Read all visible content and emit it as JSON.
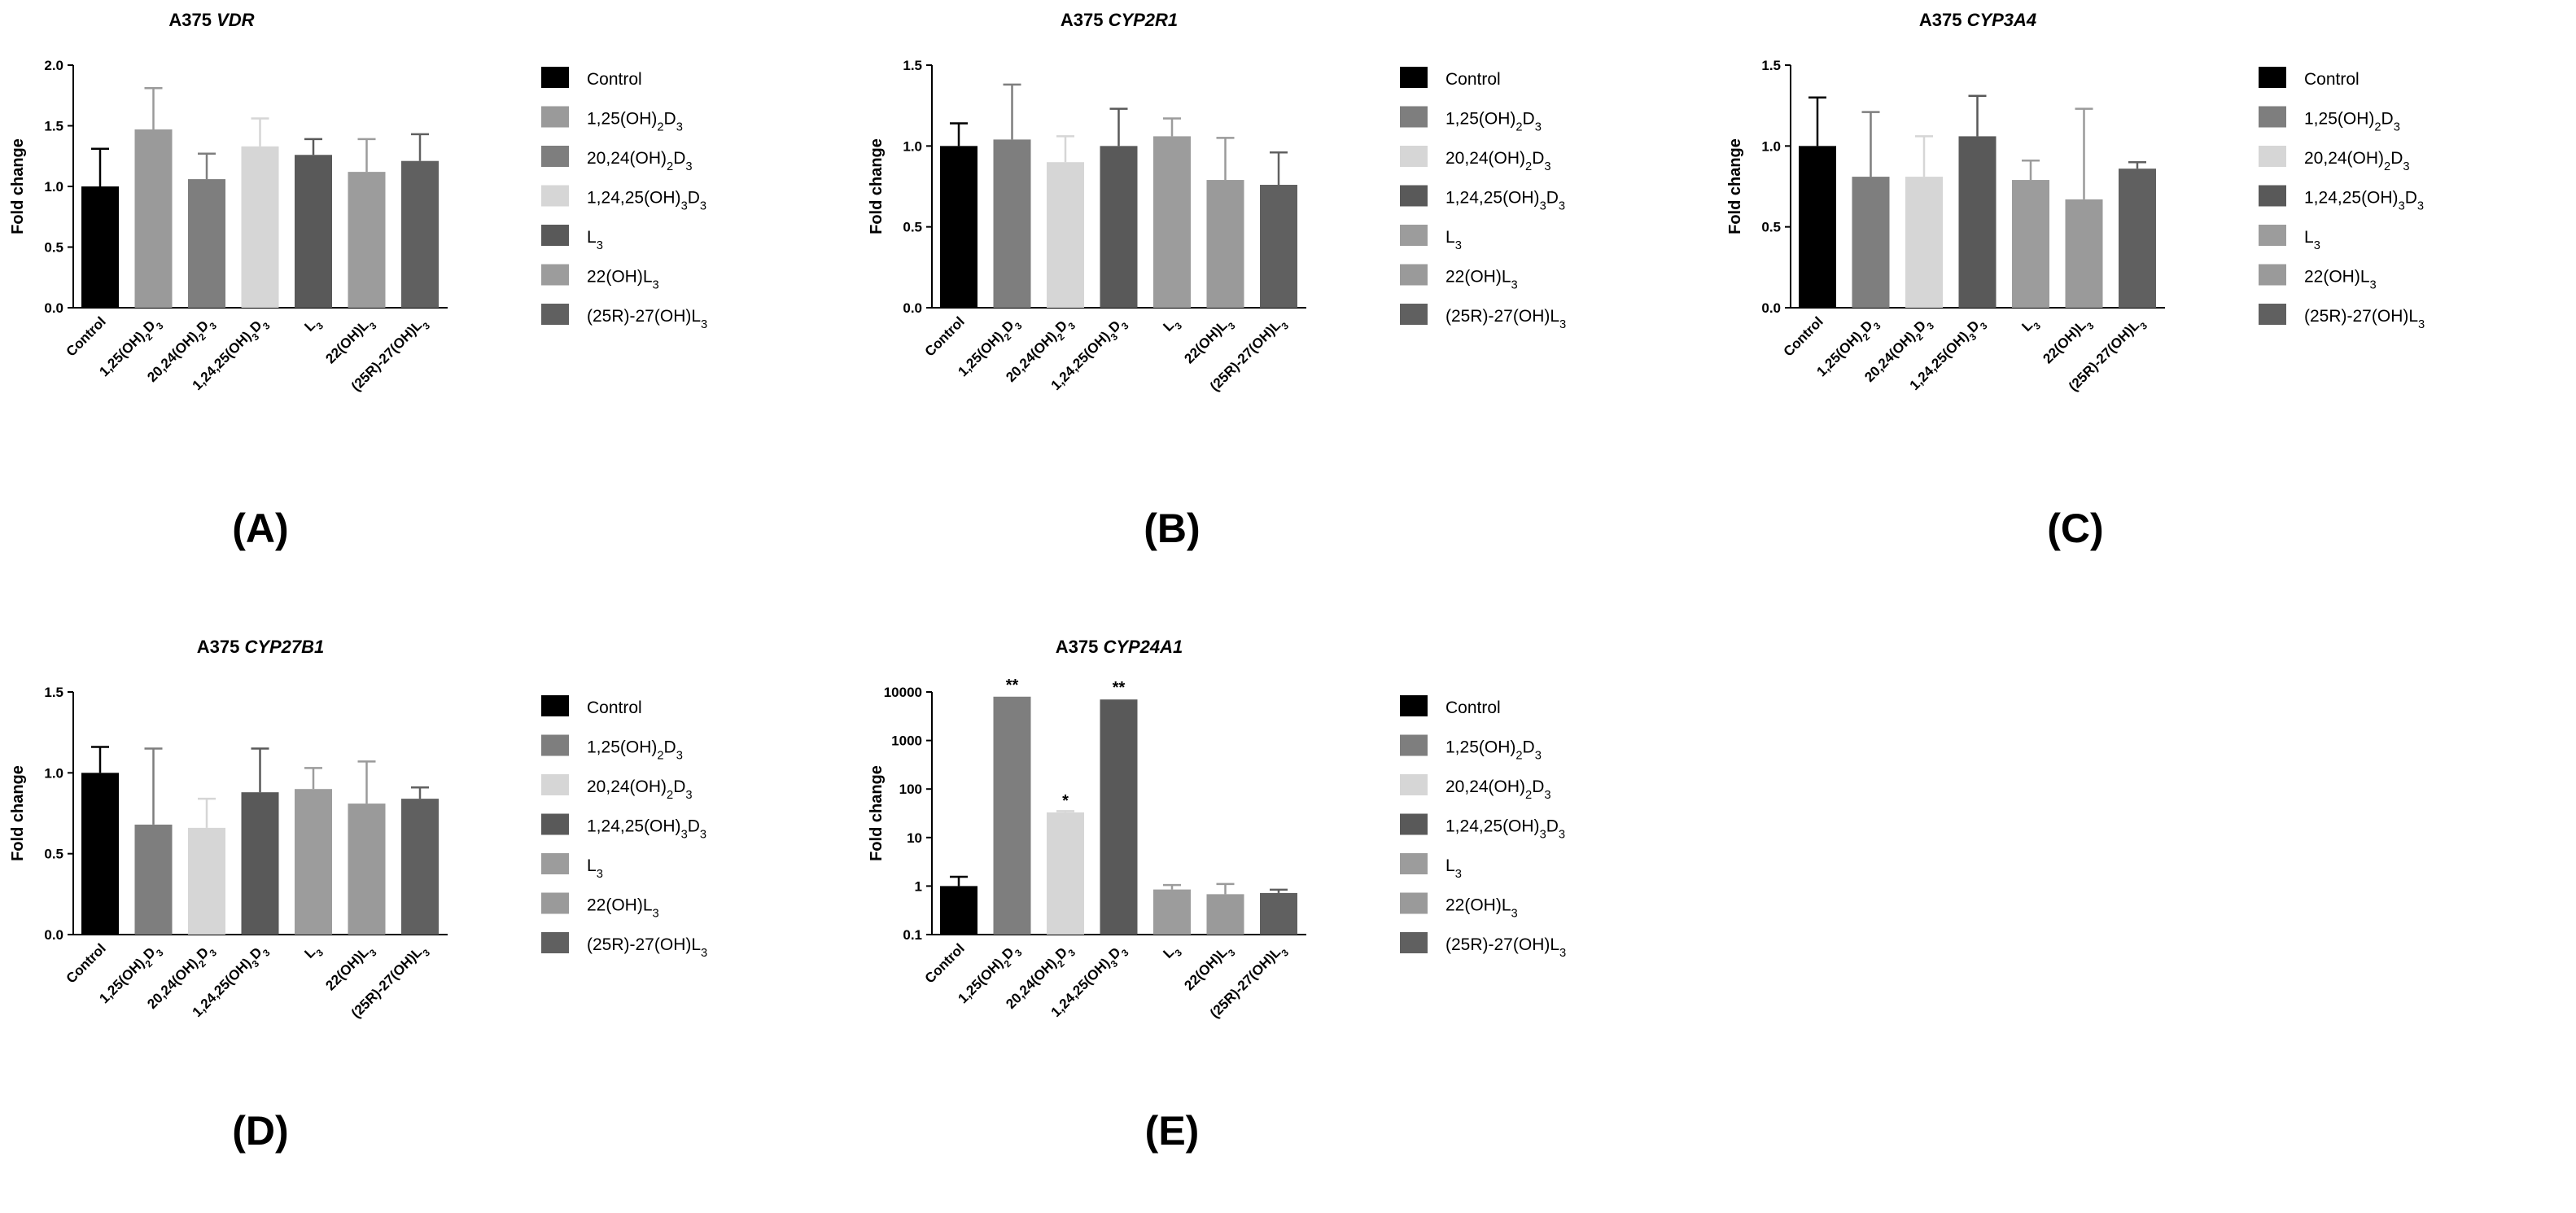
{
  "treatments": [
    {
      "key": "control",
      "label": "Control",
      "legend": [
        "Control"
      ],
      "tick": [
        "Control"
      ]
    },
    {
      "key": "vd3",
      "label": "1,25(OH)2D3",
      "legend": [
        "1,25(OH)",
        "2",
        "D",
        "3"
      ],
      "tick": [
        "1,25(OH)",
        "2",
        "D",
        "3"
      ]
    },
    {
      "key": "d20",
      "label": "20,24(OH)2D3",
      "legend": [
        "20,24(OH)",
        "2",
        "D",
        "3"
      ],
      "tick": [
        "20,24(OH)",
        "2",
        "D",
        "3"
      ]
    },
    {
      "key": "d124",
      "label": "1,24,25(OH)3D3",
      "legend": [
        "1,24,25(OH)",
        "3",
        "D",
        "3"
      ],
      "tick": [
        "1,24,25(OH)",
        "3",
        "D",
        "3"
      ]
    },
    {
      "key": "l3",
      "label": "L3",
      "legend": [
        "L",
        "3"
      ],
      "tick": [
        "L",
        "3"
      ]
    },
    {
      "key": "l22",
      "label": "22(OH)L3",
      "legend": [
        "22(OH)L",
        "3"
      ],
      "tick": [
        "22(OH)L",
        "3"
      ]
    },
    {
      "key": "l27",
      "label": "(25R)-27(OH)L3",
      "legend": [
        "(25R)-27(OH)L",
        "3"
      ],
      "tick": [
        "(25R)-27(OH)L",
        "3"
      ]
    }
  ],
  "chart_data": [
    {
      "type": "bar",
      "panel": "(A)",
      "title_prefix": "A375 ",
      "title_gene": "VDR",
      "ylabel": "Fold change",
      "scale": "linear",
      "ylim": [
        0,
        2.0
      ],
      "yticks": [
        "0.0",
        "0.5",
        "1.0",
        "1.5",
        "2.0"
      ],
      "ytick_values": [
        0,
        0.5,
        1.0,
        1.5,
        2.0
      ],
      "values": [
        1.0,
        1.47,
        1.06,
        1.33,
        1.26,
        1.12,
        1.21
      ],
      "errors": [
        0.31,
        0.34,
        0.21,
        0.23,
        0.13,
        0.27,
        0.22
      ],
      "colors": [
        "#000000",
        "#9a9a9a",
        "#7e7e7e",
        "#d6d6d6",
        "#595959",
        "#9c9c9c",
        "#606060"
      ],
      "significance": [
        "",
        "",
        "",
        "",
        "",
        "",
        ""
      ]
    },
    {
      "type": "bar",
      "panel": "(B)",
      "title_prefix": "A375 ",
      "title_gene": "CYP2R1",
      "ylabel": "Fold change",
      "scale": "linear",
      "ylim": [
        0,
        1.5
      ],
      "yticks": [
        "0.0",
        "0.5",
        "1.0",
        "1.5"
      ],
      "ytick_values": [
        0,
        0.5,
        1.0,
        1.5
      ],
      "values": [
        1.0,
        1.04,
        0.9,
        1.0,
        1.06,
        0.79,
        0.76
      ],
      "errors": [
        0.14,
        0.34,
        0.16,
        0.23,
        0.11,
        0.26,
        0.2
      ],
      "colors": [
        "#000000",
        "#7e7e7e",
        "#d6d6d6",
        "#595959",
        "#9c9c9c",
        "#9a9a9a",
        "#606060"
      ],
      "significance": [
        "",
        "",
        "",
        "",
        "",
        "",
        ""
      ]
    },
    {
      "type": "bar",
      "panel": "(C)",
      "title_prefix": "A375 ",
      "title_gene": "CYP3A4",
      "ylabel": "Fold change",
      "scale": "linear",
      "ylim": [
        0,
        1.5
      ],
      "yticks": [
        "0.0",
        "0.5",
        "1.0",
        "1.5"
      ],
      "ytick_values": [
        0,
        0.5,
        1.0,
        1.5
      ],
      "values": [
        1.0,
        0.81,
        0.81,
        1.06,
        0.79,
        0.67,
        0.86
      ],
      "errors": [
        0.3,
        0.4,
        0.25,
        0.25,
        0.12,
        0.56,
        0.04
      ],
      "colors": [
        "#000000",
        "#7e7e7e",
        "#d6d6d6",
        "#595959",
        "#9c9c9c",
        "#9a9a9a",
        "#606060"
      ],
      "significance": [
        "",
        "",
        "",
        "",
        "",
        "",
        ""
      ]
    },
    {
      "type": "bar",
      "panel": "(D)",
      "title_prefix": "A375 ",
      "title_gene": "CYP27B1",
      "ylabel": "Fold change",
      "scale": "linear",
      "ylim": [
        0,
        1.5
      ],
      "yticks": [
        "0.0",
        "0.5",
        "1.0",
        "1.5"
      ],
      "ytick_values": [
        0,
        0.5,
        1.0,
        1.5
      ],
      "values": [
        1.0,
        0.68,
        0.66,
        0.88,
        0.9,
        0.81,
        0.84
      ],
      "errors": [
        0.16,
        0.47,
        0.18,
        0.27,
        0.13,
        0.26,
        0.07
      ],
      "colors": [
        "#000000",
        "#7e7e7e",
        "#d6d6d6",
        "#595959",
        "#9c9c9c",
        "#9a9a9a",
        "#606060"
      ],
      "significance": [
        "",
        "",
        "",
        "",
        "",
        "",
        ""
      ]
    },
    {
      "type": "bar",
      "panel": "(E)",
      "title_prefix": "A375 ",
      "title_gene": "CYP24A1",
      "ylabel": "Fold change",
      "scale": "log",
      "ylim": [
        0.1,
        10000
      ],
      "yticks": [
        "0.1",
        "1",
        "10",
        "100",
        "1000",
        "10000"
      ],
      "ytick_values": [
        0.1,
        1,
        10,
        100,
        1000,
        10000
      ],
      "values": [
        1.0,
        8000,
        33,
        7000,
        0.85,
        0.68,
        0.72
      ],
      "errors": [
        0.55,
        0,
        2,
        0,
        0.2,
        0.42,
        0.12
      ],
      "colors": [
        "#000000",
        "#7e7e7e",
        "#d6d6d6",
        "#595959",
        "#9c9c9c",
        "#9a9a9a",
        "#606060"
      ],
      "significance": [
        "",
        "**",
        "*",
        "**",
        "",
        "",
        ""
      ]
    }
  ]
}
